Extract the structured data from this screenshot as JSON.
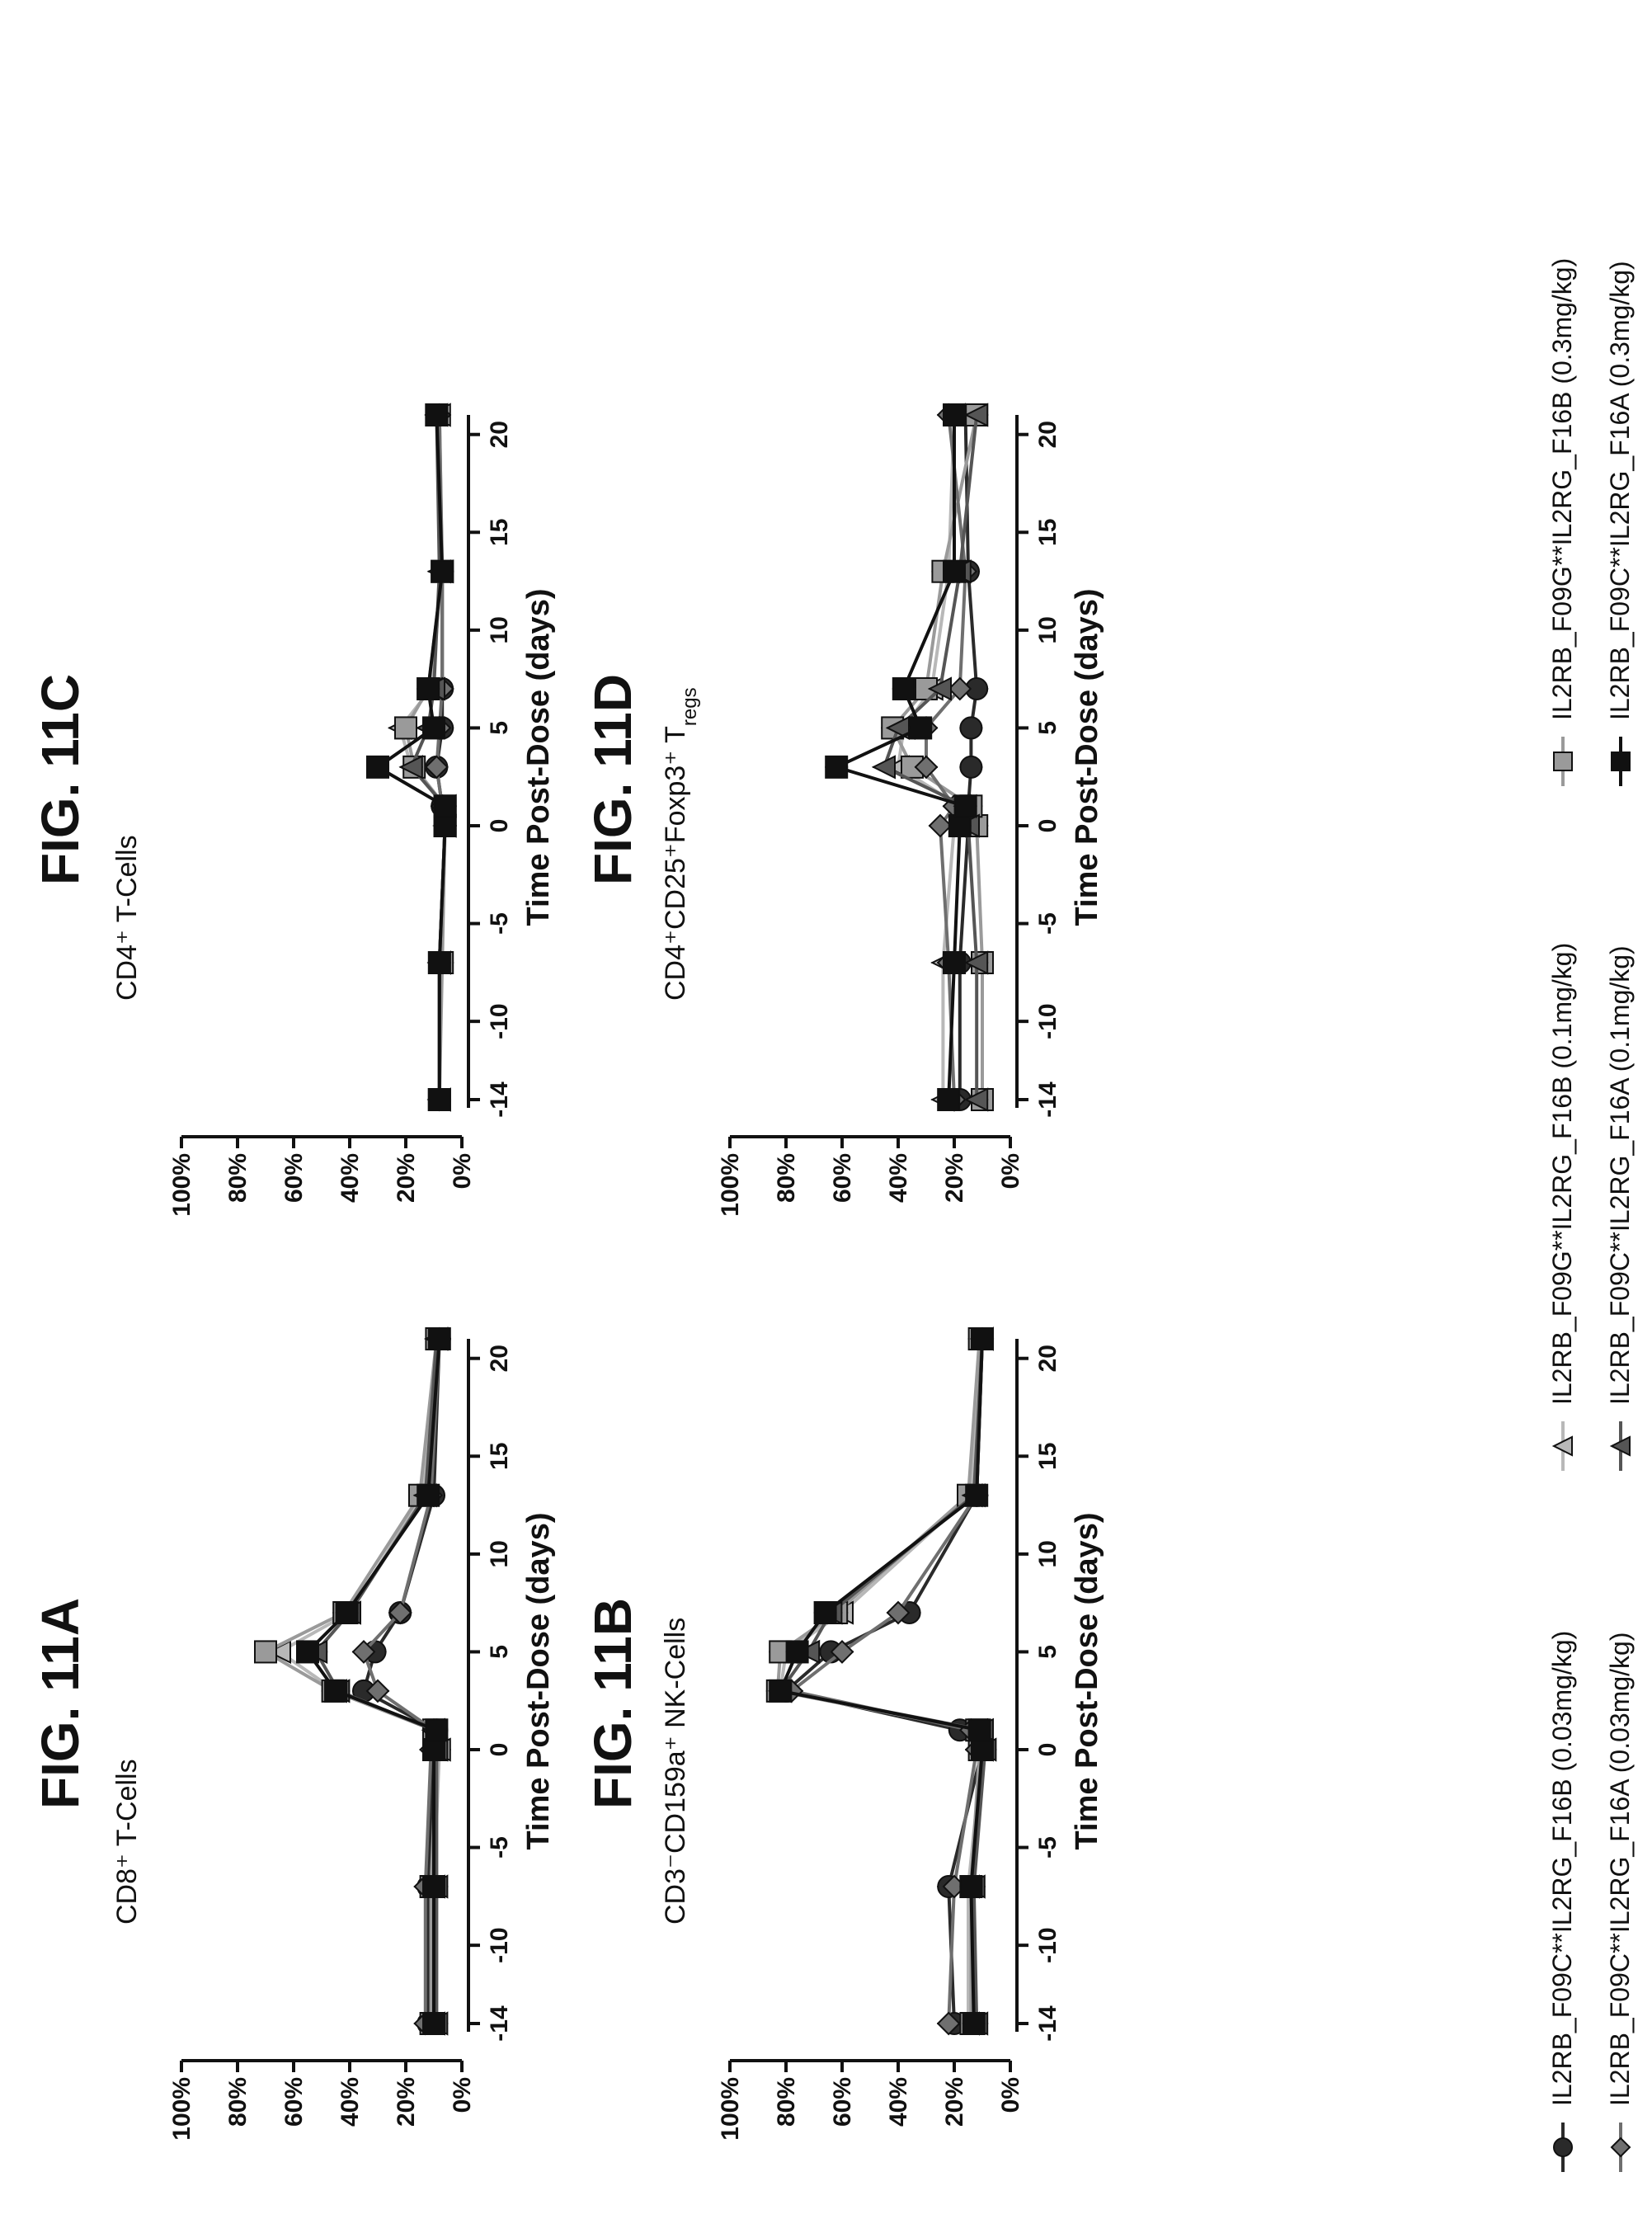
{
  "chart_data": [
    {
      "id": "11A",
      "type": "line",
      "title": "FIG. 11A",
      "subtitle": "CD8⁺ T-Cells",
      "xlabel": "Time Post-Dose (days)",
      "ylabel": "",
      "xticks": [
        -14,
        -10,
        -5,
        0,
        5,
        10,
        15,
        20
      ],
      "yticks": [
        "0%",
        "20%",
        "40%",
        "60%",
        "80%",
        "100%"
      ],
      "xlim": [
        -14,
        21
      ],
      "ylim": [
        0,
        100
      ],
      "x": [
        -14,
        -7,
        0,
        1,
        3,
        5,
        7,
        13,
        21
      ],
      "series": [
        {
          "name": "IL2RB_F09C**IL2RG_F16B (0.03mg/kg)",
          "values": [
            12,
            12,
            10,
            9,
            35,
            31,
            22,
            10,
            8
          ]
        },
        {
          "name": "IL2RB_F09G**IL2RG_F16B (0.1mg/kg)",
          "values": [
            10,
            10,
            8,
            10,
            45,
            65,
            40,
            14,
            9
          ]
        },
        {
          "name": "IL2RB_F09G**IL2RG_F16B (0.3mg/kg)",
          "values": [
            11,
            11,
            9,
            10,
            46,
            70,
            42,
            15,
            9
          ]
        },
        {
          "name": "IL2RB_F09C**IL2RG_F16A (0.03mg/kg)",
          "values": [
            13,
            13,
            11,
            10,
            30,
            35,
            22,
            11,
            8
          ]
        },
        {
          "name": "IL2RB_F09C**IL2RG_F16A (0.1mg/kg)",
          "values": [
            9,
            9,
            9,
            10,
            44,
            52,
            40,
            13,
            9
          ]
        },
        {
          "name": "IL2RB_F09C**IL2RG_F16A (0.3mg/kg)",
          "values": [
            10,
            10,
            10,
            9,
            45,
            55,
            41,
            12,
            8
          ]
        }
      ]
    },
    {
      "id": "11B",
      "type": "line",
      "title": "FIG. 11B",
      "subtitle": "CD3⁻CD159a⁺ NK-Cells",
      "xlabel": "Time Post-Dose (days)",
      "ylabel": "",
      "xticks": [
        -14,
        -10,
        -5,
        0,
        5,
        10,
        15,
        20
      ],
      "yticks": [
        "0%",
        "20%",
        "40%",
        "60%",
        "80%",
        "100%"
      ],
      "xlim": [
        -14,
        21
      ],
      "ylim": [
        0,
        100
      ],
      "x": [
        -14,
        -7,
        0,
        1,
        3,
        5,
        7,
        13,
        21
      ],
      "series": [
        {
          "name": "IL2RB_F09C**IL2RG_F16B (0.03mg/kg)",
          "values": [
            20,
            22,
            10,
            18,
            80,
            64,
            36,
            12,
            10
          ]
        },
        {
          "name": "IL2RB_F09G**IL2RG_F16B (0.1mg/kg)",
          "values": [
            15,
            15,
            10,
            12,
            82,
            80,
            60,
            14,
            10
          ]
        },
        {
          "name": "IL2RB_F09G**IL2RG_F16B (0.3mg/kg)",
          "values": [
            14,
            14,
            11,
            12,
            83,
            82,
            62,
            15,
            11
          ]
        },
        {
          "name": "IL2RB_F09C**IL2RG_F16A (0.03mg/kg)",
          "values": [
            22,
            20,
            12,
            14,
            78,
            60,
            40,
            12,
            10
          ]
        },
        {
          "name": "IL2RB_F09C**IL2RG_F16A (0.1mg/kg)",
          "values": [
            12,
            13,
            9,
            10,
            82,
            72,
            64,
            13,
            10
          ]
        },
        {
          "name": "IL2RB_F09C**IL2RG_F16A (0.3mg/kg)",
          "values": [
            13,
            14,
            10,
            11,
            82,
            76,
            66,
            12,
            10
          ]
        }
      ]
    },
    {
      "id": "11C",
      "type": "line",
      "title": "FIG. 11C",
      "subtitle": "CD4⁺ T-Cells",
      "xlabel": "Time Post-Dose (days)",
      "ylabel": "",
      "xticks": [
        -14,
        -10,
        -5,
        0,
        5,
        10,
        15,
        20
      ],
      "yticks": [
        "0%",
        "20%",
        "40%",
        "60%",
        "80%",
        "100%"
      ],
      "xlim": [
        -14,
        21
      ],
      "ylim": [
        0,
        100
      ],
      "x": [
        -14,
        -7,
        0,
        1,
        3,
        5,
        7,
        13,
        21
      ],
      "series": [
        {
          "name": "IL2RB_F09C**IL2RG_F16B (0.03mg/kg)",
          "values": [
            8,
            8,
            6,
            7,
            9,
            7,
            7,
            7,
            9
          ]
        },
        {
          "name": "IL2RB_F09G**IL2RG_F16B (0.1mg/kg)",
          "values": [
            8,
            8,
            6,
            6,
            18,
            22,
            11,
            7,
            8
          ]
        },
        {
          "name": "IL2RB_F09G**IL2RG_F16B (0.3mg/kg)",
          "values": [
            8,
            7,
            6,
            6,
            17,
            20,
            12,
            7,
            9
          ]
        },
        {
          "name": "IL2RB_F09C**IL2RG_F16A (0.03mg/kg)",
          "values": [
            8,
            8,
            6,
            7,
            9,
            8,
            7,
            7,
            8
          ]
        },
        {
          "name": "IL2RB_F09C**IL2RG_F16A (0.1mg/kg)",
          "values": [
            8,
            8,
            6,
            6,
            18,
            12,
            10,
            8,
            9
          ]
        },
        {
          "name": "IL2RB_F09C**IL2RG_F16A (0.3mg/kg)",
          "values": [
            8,
            8,
            6,
            6,
            30,
            10,
            12,
            7,
            9
          ]
        }
      ]
    },
    {
      "id": "11D",
      "type": "line",
      "title": "FIG. 11D",
      "subtitle": "CD4⁺CD25⁺Foxp3⁺ T",
      "subtitle_sub": "regs",
      "xlabel": "Time Post-Dose (days)",
      "ylabel": "",
      "xticks": [
        -14,
        -10,
        -5,
        0,
        5,
        10,
        15,
        20
      ],
      "yticks": [
        "0%",
        "20%",
        "40%",
        "60%",
        "80%",
        "100%"
      ],
      "xlim": [
        -14,
        21
      ],
      "ylim": [
        0,
        100
      ],
      "x": [
        -14,
        -7,
        0,
        1,
        3,
        5,
        7,
        13,
        21
      ],
      "series": [
        {
          "name": "IL2RB_F09C**IL2RG_F16B (0.03mg/kg)",
          "values": [
            18,
            18,
            15,
            15,
            14,
            14,
            12,
            15,
            16
          ]
        },
        {
          "name": "IL2RB_F09G**IL2RG_F16B (0.1mg/kg)",
          "values": [
            24,
            24,
            20,
            18,
            40,
            38,
            28,
            22,
            20
          ]
        },
        {
          "name": "IL2RB_F09G**IL2RG_F16B (0.3mg/kg)",
          "values": [
            10,
            10,
            12,
            14,
            35,
            42,
            30,
            24,
            12
          ]
        },
        {
          "name": "IL2RB_F09C**IL2RG_F16A (0.03mg/kg)",
          "values": [
            20,
            22,
            25,
            20,
            30,
            30,
            18,
            16,
            22
          ]
        },
        {
          "name": "IL2RB_F09C**IL2RG_F16A (0.1mg/kg)",
          "values": [
            12,
            12,
            15,
            16,
            45,
            40,
            25,
            18,
            12
          ]
        },
        {
          "name": "IL2RB_F09C**IL2RG_F16A (0.3mg/kg)",
          "values": [
            22,
            20,
            18,
            16,
            62,
            32,
            38,
            20,
            20
          ]
        }
      ]
    }
  ],
  "legend": {
    "items": [
      {
        "label": "IL2RB_F09C**IL2RG_F16B (0.03mg/kg)",
        "marker": "circle",
        "color": "#2a2a2a"
      },
      {
        "label": "IL2RB_F09G**IL2RG_F16B (0.1mg/kg)",
        "marker": "triangle",
        "color": "#b8b8b8"
      },
      {
        "label": "IL2RB_F09G**IL2RG_F16B (0.3mg/kg)",
        "marker": "square",
        "color": "#9a9a9a"
      },
      {
        "label": "IL2RB_F09C**IL2RG_F16A (0.03mg/kg)",
        "marker": "diamond",
        "color": "#6f6f6f"
      },
      {
        "label": "IL2RB_F09C**IL2RG_F16A (0.1mg/kg)",
        "marker": "triangle",
        "color": "#555555"
      },
      {
        "label": "IL2RB_F09C**IL2RG_F16A (0.3mg/kg)",
        "marker": "square",
        "color": "#111111"
      }
    ]
  }
}
